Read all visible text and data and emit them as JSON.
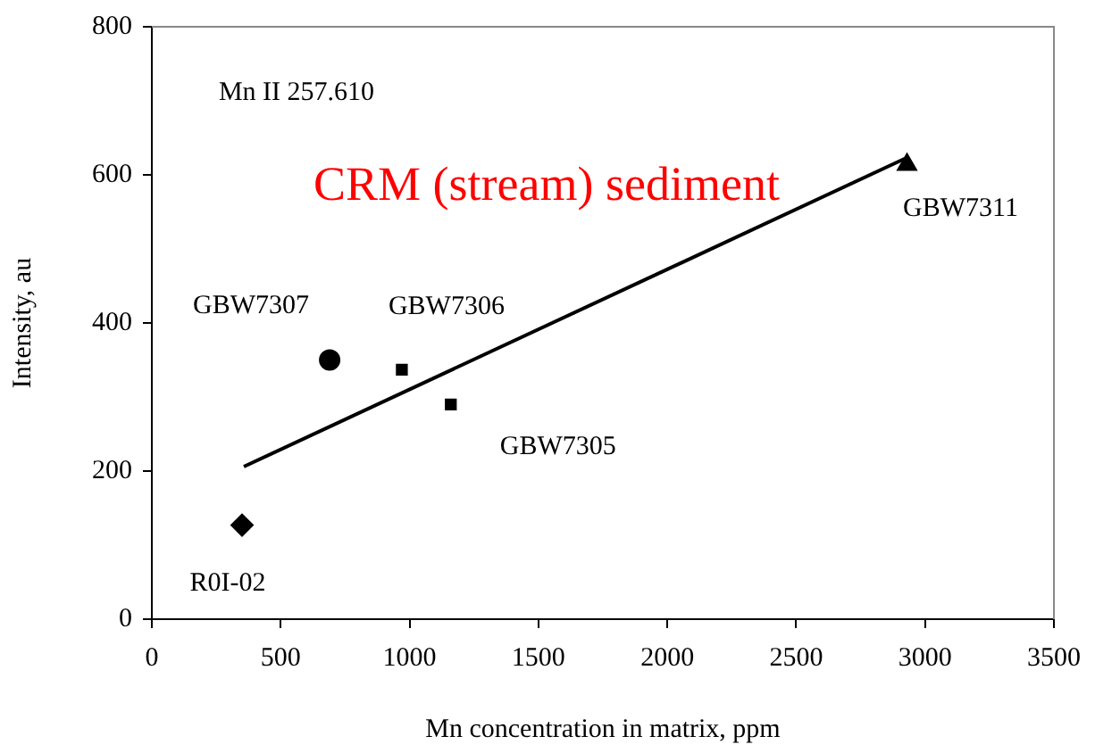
{
  "chart_data": {
    "type": "scatter",
    "xlabel": "Mn concentration in matrix, ppm",
    "ylabel": "Intensity, au",
    "xlim": [
      0,
      3500
    ],
    "xticks": [
      0,
      500,
      1000,
      1500,
      2000,
      2500,
      3000,
      3500
    ],
    "ylim": [
      0,
      800
    ],
    "yticks": [
      0,
      200,
      400,
      600,
      800
    ],
    "grid": false,
    "legend": false,
    "series": [
      {
        "marker": "diamond",
        "color": "#000000",
        "x": [
          350
        ],
        "values": [
          127
        ]
      },
      {
        "marker": "circle",
        "color": "#000000",
        "x": [
          690
        ],
        "values": [
          350
        ]
      },
      {
        "marker": "square",
        "color": "#000000",
        "x": [
          970,
          1160
        ],
        "values": [
          337,
          290
        ]
      },
      {
        "marker": "triangle",
        "color": "#000000",
        "x": [
          2930
        ],
        "values": [
          614
        ]
      },
      {
        "type": "line",
        "marker": "none",
        "color": "#000000",
        "x": [
          357,
          2922
        ],
        "values": [
          206,
          622
        ]
      }
    ],
    "annotations": [
      "Mn II 257.610",
      "CRM (stream) sediment",
      {
        "text": "R0I-02",
        "x": 350,
        "y": 127
      },
      {
        "text": "GBW7307",
        "x": 690,
        "y": 350
      },
      {
        "text": "GBW7306",
        "x": 970,
        "y": 337
      },
      {
        "text": "GBW7305",
        "x": 1160,
        "y": 290
      },
      {
        "text": "GBW7311",
        "x": 2930,
        "y": 614
      }
    ]
  }
}
